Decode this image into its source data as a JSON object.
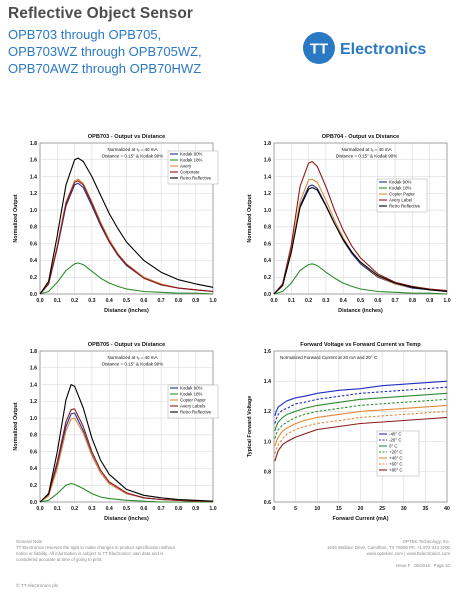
{
  "header": {
    "title": "Reflective Object Sensor",
    "subtitle_lines": [
      "OPB703 through OPB705,",
      "OPB703WZ through OPB705WZ,",
      "OPB70AWZ through OPB70HWZ"
    ],
    "logo_text": "Electronics",
    "logo_mark": "TT",
    "brand_color": "#2a79c4"
  },
  "footer": {
    "note_title": "General Note",
    "note_lines": [
      "TT Electronics reserves the right to make changes in product specification without",
      "notice or liability. All information is subject to TT Electronics' own data and is",
      "considered accurate at time of going to print."
    ],
    "copyright": "© TT electronics plc",
    "company": "OPTEK Technology, Inc.",
    "address": "1645 Wallace Drive, Carrollton, TX 75006 Ph: +1 972 323 2200",
    "web": "www.optekinc.com | www.ttelectronics.com",
    "issue": "Issue F",
    "date": "06/2016",
    "page": "Page 10"
  },
  "chart_data": [
    {
      "type": "line",
      "title": "OPB703 - Output vs Distance",
      "xlabel": "Distance (inches)",
      "ylabel": "Normalized Output",
      "xlim": [
        0,
        1.0
      ],
      "ylim": [
        0,
        1.8
      ],
      "xticks": [
        "0.0",
        "0.1",
        "0.2",
        "0.3",
        "0.4",
        "0.5",
        "0.6",
        "0.7",
        "0.8",
        "0.9",
        "1.0"
      ],
      "yticks": [
        "0.0",
        "0.2",
        "0.4",
        "0.6",
        "0.8",
        "1.0",
        "1.2",
        "1.4",
        "1.6",
        "1.8"
      ],
      "grid": true,
      "annotations": [
        "Normalized at Iₔ = 40 mA",
        "Distance = 0.15\" & Kodak 90%"
      ],
      "legend": "top-right",
      "x": [
        0,
        0.05,
        0.1,
        0.15,
        0.2,
        0.22,
        0.25,
        0.3,
        0.35,
        0.4,
        0.45,
        0.5,
        0.6,
        0.7,
        0.8,
        0.9,
        1.0
      ],
      "series": [
        {
          "name": "Kodak 90%",
          "color": "#1f2f8f",
          "values": [
            0,
            0.12,
            0.55,
            1.05,
            1.3,
            1.32,
            1.27,
            1.05,
            0.82,
            0.62,
            0.46,
            0.34,
            0.19,
            0.11,
            0.07,
            0.05,
            0.03
          ]
        },
        {
          "name": "Kodak 18%",
          "color": "#2e8b2e",
          "values": [
            0,
            0.03,
            0.14,
            0.28,
            0.36,
            0.37,
            0.35,
            0.27,
            0.19,
            0.13,
            0.09,
            0.06,
            0.03,
            0.02,
            0.01,
            0.01,
            0.0
          ]
        },
        {
          "name": "Avery",
          "color": "#e08a3c",
          "values": [
            0,
            0.13,
            0.58,
            1.1,
            1.35,
            1.37,
            1.32,
            1.1,
            0.86,
            0.65,
            0.48,
            0.36,
            0.2,
            0.12,
            0.07,
            0.05,
            0.03
          ]
        },
        {
          "name": "Corporate",
          "color": "#8b1a1a",
          "values": [
            0,
            0.12,
            0.56,
            1.08,
            1.33,
            1.35,
            1.3,
            1.08,
            0.84,
            0.63,
            0.47,
            0.35,
            0.19,
            0.11,
            0.07,
            0.05,
            0.03
          ]
        },
        {
          "name": "Retro Reflective",
          "color": "#000000",
          "values": [
            0,
            0.15,
            0.7,
            1.3,
            1.6,
            1.62,
            1.58,
            1.4,
            1.18,
            0.96,
            0.78,
            0.62,
            0.4,
            0.26,
            0.17,
            0.12,
            0.08
          ]
        }
      ]
    },
    {
      "type": "line",
      "title": "OPB704 - Output vs Distance",
      "xlabel": "Distance (inches)",
      "ylabel": "Normalized Output",
      "xlim": [
        0,
        1.0
      ],
      "ylim": [
        0,
        1.8
      ],
      "xticks": [
        "0.0",
        "0.1",
        "0.2",
        "0.3",
        "0.4",
        "0.5",
        "0.6",
        "0.7",
        "0.8",
        "0.9",
        "1.0"
      ],
      "yticks": [
        "0.0",
        "0.2",
        "0.4",
        "0.6",
        "0.8",
        "1.0",
        "1.2",
        "1.4",
        "1.6",
        "1.8"
      ],
      "grid": true,
      "annotations": [
        "Normalized at Iₔ = 40 mA",
        "Distance = 0.15\" & Kodak 90%"
      ],
      "legend": "right",
      "x": [
        0,
        0.05,
        0.1,
        0.15,
        0.2,
        0.22,
        0.25,
        0.3,
        0.35,
        0.4,
        0.45,
        0.5,
        0.6,
        0.7,
        0.8,
        0.9,
        1.0
      ],
      "series": [
        {
          "name": "Kodak 90%",
          "color": "#1f2f8f",
          "values": [
            0,
            0.1,
            0.5,
            1.05,
            1.28,
            1.3,
            1.26,
            1.06,
            0.84,
            0.64,
            0.48,
            0.36,
            0.2,
            0.12,
            0.07,
            0.05,
            0.03
          ]
        },
        {
          "name": "Kodak 18%",
          "color": "#2e8b2e",
          "values": [
            0,
            0.03,
            0.13,
            0.28,
            0.35,
            0.36,
            0.34,
            0.26,
            0.19,
            0.13,
            0.09,
            0.06,
            0.03,
            0.02,
            0.01,
            0.01,
            0.0
          ]
        },
        {
          "name": "Copier Paper",
          "color": "#e08a3c",
          "values": [
            0,
            0.11,
            0.53,
            1.1,
            1.36,
            1.37,
            1.33,
            1.12,
            0.88,
            0.67,
            0.5,
            0.38,
            0.21,
            0.12,
            0.08,
            0.05,
            0.03
          ]
        },
        {
          "name": "Avery Label",
          "color": "#8b1a1a",
          "values": [
            0,
            0.12,
            0.58,
            1.28,
            1.56,
            1.58,
            1.52,
            1.28,
            1.0,
            0.76,
            0.57,
            0.43,
            0.24,
            0.14,
            0.09,
            0.06,
            0.04
          ]
        },
        {
          "name": "Retro Reflective",
          "color": "#000000",
          "values": [
            0,
            0.1,
            0.5,
            1.03,
            1.25,
            1.27,
            1.24,
            1.05,
            0.84,
            0.65,
            0.5,
            0.38,
            0.22,
            0.13,
            0.08,
            0.05,
            0.03
          ]
        }
      ]
    },
    {
      "type": "line",
      "title": "OPB705 - Output vs Distance",
      "xlabel": "Distance (inches)",
      "ylabel": "Normalized Output",
      "xlim": [
        0,
        1.0
      ],
      "ylim": [
        0,
        1.8
      ],
      "xticks": [
        "0.0",
        "0.1",
        "0.2",
        "0.3",
        "0.4",
        "0.5",
        "0.6",
        "0.7",
        "0.8",
        "0.9",
        "1.0"
      ],
      "yticks": [
        "0.0",
        "0.2",
        "0.4",
        "0.6",
        "0.8",
        "1.0",
        "1.2",
        "1.4",
        "1.6",
        "1.8"
      ],
      "grid": true,
      "annotations": [
        "Normalized at Iₔ = 40 mA",
        "Distance = 0.15\" & Kodak 90%"
      ],
      "legend": "top-right",
      "x": [
        0,
        0.05,
        0.1,
        0.15,
        0.18,
        0.2,
        0.25,
        0.3,
        0.35,
        0.4,
        0.5,
        0.6,
        0.7,
        0.8,
        0.9,
        1.0
      ],
      "series": [
        {
          "name": "Kodak 90%",
          "color": "#1f2f8f",
          "values": [
            0,
            0.08,
            0.45,
            0.9,
            1.05,
            1.06,
            0.85,
            0.56,
            0.35,
            0.22,
            0.1,
            0.05,
            0.03,
            0.02,
            0.01,
            0.01
          ]
        },
        {
          "name": "Kodak 18%",
          "color": "#2e8b2e",
          "values": [
            0,
            0.02,
            0.1,
            0.2,
            0.22,
            0.21,
            0.16,
            0.1,
            0.06,
            0.04,
            0.02,
            0.01,
            0.0,
            0.0,
            0.0,
            0.0
          ]
        },
        {
          "name": "Copier Paper",
          "color": "#e08a3c",
          "values": [
            0,
            0.07,
            0.4,
            0.85,
            0.99,
            1.0,
            0.82,
            0.55,
            0.35,
            0.22,
            0.1,
            0.05,
            0.03,
            0.02,
            0.01,
            0.01
          ]
        },
        {
          "name": "Avery Labels",
          "color": "#8b1a1a",
          "values": [
            0,
            0.09,
            0.48,
            0.96,
            1.1,
            1.11,
            0.9,
            0.6,
            0.38,
            0.24,
            0.11,
            0.05,
            0.03,
            0.02,
            0.01,
            0.01
          ]
        },
        {
          "name": "Retro Reflective",
          "color": "#000000",
          "values": [
            0,
            0.1,
            0.6,
            1.22,
            1.4,
            1.38,
            1.12,
            0.76,
            0.5,
            0.33,
            0.15,
            0.08,
            0.05,
            0.03,
            0.02,
            0.01
          ]
        }
      ]
    },
    {
      "type": "line",
      "title": "Forward Voltage vs Forward Current vs Temp",
      "xlabel": "Forward Current (mA)",
      "ylabel": "Typical Forward Voltage",
      "xlim": [
        0,
        40
      ],
      "ylim": [
        0.6,
        1.6
      ],
      "xticks": [
        "0",
        "5",
        "10",
        "15",
        "20",
        "25",
        "30",
        "35",
        "40"
      ],
      "yticks": [
        "0.6",
        "0.8",
        "1.0",
        "1.2",
        "1.4",
        "1.6"
      ],
      "grid": true,
      "annotations": [
        "Normalized Forward Current at 20 mA and 20° C"
      ],
      "legend": "bottom-right",
      "x": [
        0.2,
        0.5,
        1,
        2,
        3,
        5,
        7,
        10,
        15,
        20,
        25,
        30,
        35,
        40
      ],
      "series": [
        {
          "name": "-40° C",
          "color": "#1f2fbf",
          "dash": false,
          "values": [
            1.17,
            1.2,
            1.23,
            1.25,
            1.27,
            1.29,
            1.3,
            1.32,
            1.34,
            1.35,
            1.37,
            1.38,
            1.39,
            1.4
          ]
        },
        {
          "name": "-20° C",
          "color": "#1f2fbf",
          "dash": true,
          "values": [
            1.12,
            1.15,
            1.18,
            1.21,
            1.22,
            1.25,
            1.26,
            1.28,
            1.3,
            1.32,
            1.33,
            1.34,
            1.35,
            1.36
          ]
        },
        {
          "name": "0° C",
          "color": "#2e8b2e",
          "dash": false,
          "values": [
            1.07,
            1.1,
            1.13,
            1.16,
            1.18,
            1.2,
            1.22,
            1.24,
            1.26,
            1.28,
            1.29,
            1.3,
            1.31,
            1.32
          ]
        },
        {
          "name": "+20° C",
          "color": "#2e8b2e",
          "dash": true,
          "values": [
            1.02,
            1.05,
            1.08,
            1.11,
            1.13,
            1.16,
            1.18,
            1.2,
            1.22,
            1.24,
            1.25,
            1.26,
            1.27,
            1.28
          ]
        },
        {
          "name": "+40° C",
          "color": "#e08a3c",
          "dash": false,
          "values": [
            0.97,
            1.0,
            1.03,
            1.07,
            1.09,
            1.12,
            1.14,
            1.16,
            1.18,
            1.2,
            1.21,
            1.22,
            1.23,
            1.24
          ]
        },
        {
          "name": "+60° C",
          "color": "#e08a3c",
          "dash": true,
          "values": [
            0.92,
            0.95,
            0.98,
            1.02,
            1.05,
            1.08,
            1.1,
            1.12,
            1.14,
            1.16,
            1.17,
            1.18,
            1.19,
            1.2
          ]
        },
        {
          "name": "+80° C",
          "color": "#8b1a1a",
          "dash": false,
          "values": [
            0.87,
            0.9,
            0.94,
            0.98,
            1.0,
            1.03,
            1.05,
            1.08,
            1.1,
            1.12,
            1.13,
            1.14,
            1.15,
            1.16
          ]
        }
      ]
    }
  ]
}
